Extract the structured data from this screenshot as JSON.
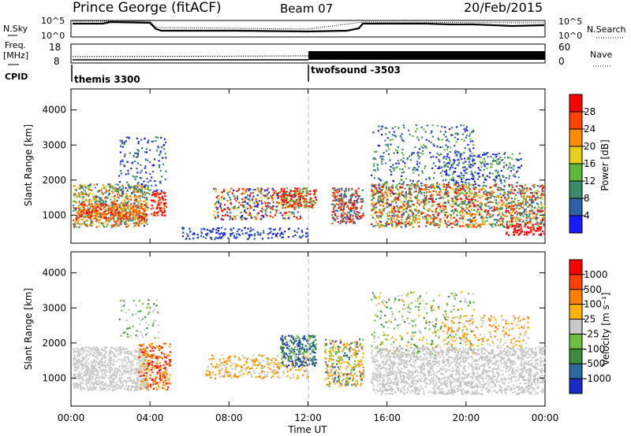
{
  "header": {
    "station": "Prince George (fitACF)",
    "beam": "Beam 07",
    "date": "20/Feb/2015"
  },
  "noise_panel": {
    "left_label": "N.Sky",
    "right_label": "N.Search",
    "y_ticks_left": [
      "10^5",
      "10^0"
    ],
    "y_ticks_right": [
      "10^5",
      "10^0"
    ]
  },
  "freq_panel": {
    "left_label_line1": "Freq.",
    "left_label_line2": "[MHz]",
    "right_label": "Nave",
    "y_ticks_left": [
      "18",
      "8"
    ],
    "y_ticks_right": [
      "60",
      "0"
    ]
  },
  "cpid_panel": {
    "label": "CPID",
    "programs": [
      {
        "name": "themis 3300",
        "start": "00:00"
      },
      {
        "name": "twofsound -3503",
        "start": "12:00"
      }
    ]
  },
  "chart_data": [
    {
      "type": "heatmap",
      "parameter": "power",
      "ylabel": "Slant Range [km]",
      "y_ticks": [
        1000,
        2000,
        3000,
        4000
      ],
      "ylim": [
        200,
        4600
      ],
      "x_ticks": [
        "00:00",
        "04:00",
        "08:00",
        "12:00",
        "16:00",
        "20:00",
        "00:00"
      ],
      "colorbar_label": "Power [dB]",
      "colorbar_ticks": [
        "28",
        "24",
        "20",
        "16",
        "12",
        "8",
        "4"
      ],
      "colorbar_colors": [
        "#1a1aff",
        "#2e5fa8",
        "#3b8a6a",
        "#5fb83a",
        "#e8d01a",
        "#ff8c00",
        "#ff4400",
        "#ff0000"
      ]
    },
    {
      "type": "heatmap",
      "parameter": "velocity",
      "ylabel": "Slant Range [km]",
      "y_ticks": [
        1000,
        2000,
        3000,
        4000
      ],
      "ylim": [
        200,
        4600
      ],
      "x_ticks": [
        "00:00",
        "04:00",
        "08:00",
        "12:00",
        "16:00",
        "20:00",
        "00:00"
      ],
      "xlabel": "Time UT",
      "colorbar_label": "Velocity [m s⁻¹]",
      "colorbar_ticks": [
        "1000",
        "500",
        "100",
        "25",
        "-25",
        "-100",
        "-500",
        "-1000"
      ],
      "colorbar_colors": [
        "#1a2cc8",
        "#2e6aa0",
        "#3c8c3c",
        "#6cc040",
        "#c8c8c8",
        "#ffb300",
        "#ff8000",
        "#ff4000",
        "#ff0000"
      ]
    }
  ]
}
